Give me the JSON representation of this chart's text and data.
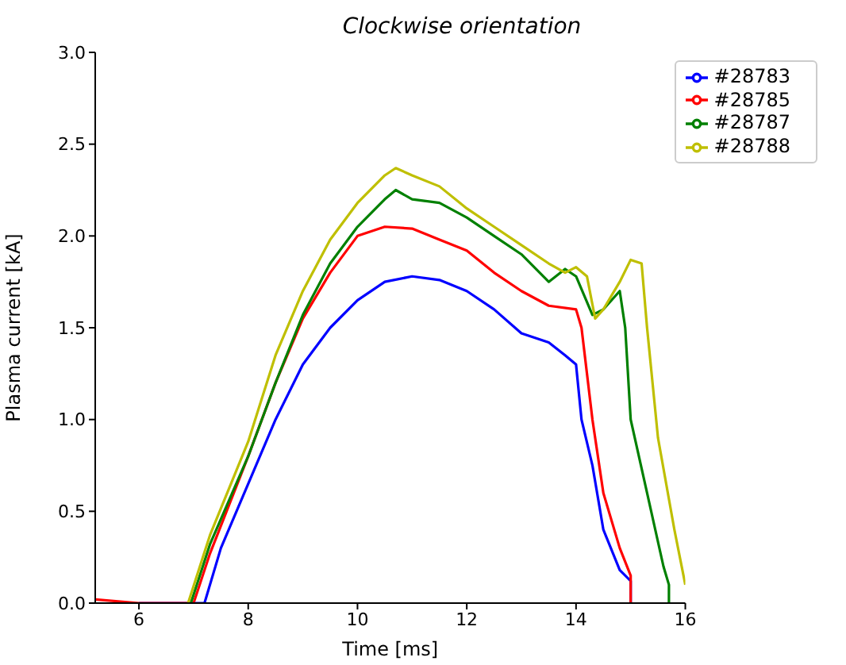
{
  "chart_data": {
    "type": "line",
    "title": "Clockwise orientation",
    "xlabel": "Time [ms]",
    "ylabel": "Plasma current [kA]",
    "xlim": [
      5.2,
      16
    ],
    "xticks": [
      6,
      8,
      10,
      12,
      14,
      16
    ],
    "ylim": [
      0,
      3
    ],
    "yticks": [
      {
        "value": 0,
        "label": "0.0"
      },
      {
        "value": 0.5,
        "label": "0.5"
      },
      {
        "value": 1,
        "label": "1.0"
      },
      {
        "value": 1.5,
        "label": "1.5"
      },
      {
        "value": 2,
        "label": "2.0"
      },
      {
        "value": 2.5,
        "label": "2.5"
      },
      {
        "value": 3,
        "label": "3.0"
      }
    ],
    "grid": false,
    "legend": "top right",
    "marker": "none",
    "line_style": "solid",
    "series": [
      {
        "name": "#28783",
        "color": "#0000ff",
        "x": [
          6,
          7.2,
          7.5,
          8,
          8.5,
          9,
          9.5,
          10,
          10.5,
          11,
          11.5,
          12,
          12.5,
          13,
          13.5,
          13.8,
          14,
          14.1,
          14.3,
          14.5,
          14.8,
          15,
          15
        ],
        "values": [
          0,
          0,
          0.3,
          0.65,
          1.0,
          1.3,
          1.5,
          1.65,
          1.75,
          1.78,
          1.76,
          1.7,
          1.6,
          1.47,
          1.42,
          1.35,
          1.3,
          1.0,
          0.75,
          0.4,
          0.18,
          0.12,
          0
        ]
      },
      {
        "name": "#28785",
        "color": "#ff0000",
        "x": [
          5.2,
          6,
          7,
          7.3,
          8,
          8.5,
          9,
          9.5,
          10,
          10.5,
          11,
          11.5,
          12,
          12.5,
          13,
          13.5,
          14,
          14.1,
          14.3,
          14.5,
          14.8,
          15,
          15
        ],
        "values": [
          0.02,
          0,
          0,
          0.27,
          0.8,
          1.2,
          1.55,
          1.8,
          2.0,
          2.05,
          2.04,
          1.98,
          1.92,
          1.8,
          1.7,
          1.62,
          1.6,
          1.5,
          1.0,
          0.6,
          0.3,
          0.15,
          0
        ]
      },
      {
        "name": "#28787",
        "color": "#008000",
        "x": [
          6.95,
          7.3,
          8,
          8.5,
          9,
          9.5,
          10,
          10.5,
          10.7,
          11,
          11.5,
          12,
          12.5,
          13,
          13.5,
          13.8,
          14,
          14.3,
          14.5,
          14.8,
          14.9,
          15,
          15.3,
          15.6,
          15.7,
          15.7
        ],
        "values": [
          0,
          0.32,
          0.8,
          1.2,
          1.57,
          1.85,
          2.05,
          2.2,
          2.25,
          2.2,
          2.18,
          2.1,
          2.0,
          1.9,
          1.75,
          1.82,
          1.78,
          1.57,
          1.6,
          1.7,
          1.5,
          1.0,
          0.6,
          0.2,
          0.1,
          0
        ]
      },
      {
        "name": "#28788",
        "color": "#bfbf00",
        "x": [
          6.9,
          7.3,
          8,
          8.5,
          9,
          9.5,
          10,
          10.5,
          10.7,
          11,
          11.5,
          12,
          12.5,
          13,
          13.5,
          13.8,
          14,
          14.2,
          14.35,
          14.5,
          14.8,
          15,
          15.2,
          15.3,
          15.5,
          15.8,
          16
        ],
        "values": [
          0,
          0.37,
          0.88,
          1.35,
          1.7,
          1.98,
          2.18,
          2.33,
          2.37,
          2.33,
          2.27,
          2.15,
          2.05,
          1.95,
          1.85,
          1.8,
          1.83,
          1.78,
          1.55,
          1.6,
          1.75,
          1.87,
          1.85,
          1.5,
          0.9,
          0.4,
          0.1
        ]
      }
    ]
  }
}
